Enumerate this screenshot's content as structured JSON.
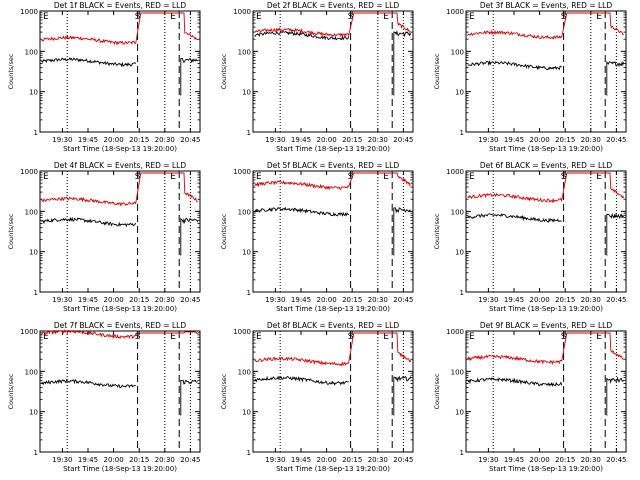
{
  "chart_data": [
    {
      "type": "line",
      "title": "Det 1f BLACK = Events, RED = LLD",
      "xlabel": "Start Time (18-Sep-13 19:20:00)",
      "ylabel": "Counts/sec",
      "yscale": "log",
      "ylim": [
        1,
        1000
      ],
      "yticks": [
        "1",
        "10",
        "100",
        "1000"
      ],
      "xticks": [
        "19:30",
        "19:45",
        "20:00",
        "20:15",
        "20:30",
        "20:45"
      ],
      "markers": [
        "E",
        "S",
        "E"
      ],
      "series": [
        {
          "color": "#000000",
          "level": 55
        },
        {
          "color": "#e00000",
          "level": 190
        }
      ]
    },
    {
      "type": "line",
      "title": "Det 2f BLACK = Events, RED = LLD",
      "xlabel": "Start Time (18-Sep-13 19:20:00)",
      "ylabel": "Counts/sec",
      "yscale": "log",
      "ylim": [
        1,
        1000
      ],
      "yticks": [
        "1",
        "10",
        "100",
        "1000"
      ],
      "xticks": [
        "19:30",
        "19:45",
        "20:00",
        "20:15",
        "20:30",
        "20:45"
      ],
      "markers": [
        "E",
        "S",
        "E"
      ],
      "series": [
        {
          "color": "#000000",
          "level": 250
        },
        {
          "color": "#e00000",
          "level": 300
        }
      ]
    },
    {
      "type": "line",
      "title": "Det 3f BLACK = Events, RED = LLD",
      "xlabel": "Start Time (18-Sep-13 19:20:00)",
      "ylabel": "Counts/sec",
      "yscale": "log",
      "ylim": [
        1,
        1000
      ],
      "yticks": [
        "1",
        "10",
        "100",
        "1000"
      ],
      "xticks": [
        "19:30",
        "19:45",
        "20:00",
        "20:15",
        "20:30",
        "20:45"
      ],
      "markers": [
        "E",
        "S",
        "E"
      ],
      "series": [
        {
          "color": "#000000",
          "level": 45
        },
        {
          "color": "#e00000",
          "level": 260
        }
      ]
    },
    {
      "type": "line",
      "title": "Det 4f BLACK = Events, RED = LLD",
      "xlabel": "Start Time (18-Sep-13 19:20:00)",
      "ylabel": "Counts/sec",
      "yscale": "log",
      "ylim": [
        1,
        1000
      ],
      "yticks": [
        "1",
        "10",
        "100",
        "1000"
      ],
      "xticks": [
        "19:30",
        "19:45",
        "20:00",
        "20:15",
        "20:30",
        "20:45"
      ],
      "markers": [
        "E",
        "S",
        "E"
      ],
      "series": [
        {
          "color": "#000000",
          "level": 55
        },
        {
          "color": "#e00000",
          "level": 180
        }
      ]
    },
    {
      "type": "line",
      "title": "Det 5f BLACK = Events, RED = LLD",
      "xlabel": "Start Time (18-Sep-13 19:20:00)",
      "ylabel": "Counts/sec",
      "yscale": "log",
      "ylim": [
        1,
        1000
      ],
      "yticks": [
        "1",
        "10",
        "100",
        "1000"
      ],
      "xticks": [
        "19:30",
        "19:45",
        "20:00",
        "20:15",
        "20:30",
        "20:45"
      ],
      "markers": [
        "E",
        "S",
        "E"
      ],
      "series": [
        {
          "color": "#000000",
          "level": 100
        },
        {
          "color": "#e00000",
          "level": 450
        }
      ]
    },
    {
      "type": "line",
      "title": "Det 6f BLACK = Events, RED = LLD",
      "xlabel": "Start Time (18-Sep-13 19:20:00)",
      "ylabel": "Counts/sec",
      "yscale": "log",
      "ylim": [
        1,
        1000
      ],
      "yticks": [
        "1",
        "10",
        "100",
        "1000"
      ],
      "xticks": [
        "19:30",
        "19:45",
        "20:00",
        "20:15",
        "20:30",
        "20:45"
      ],
      "markers": [
        "E",
        "S",
        "E"
      ],
      "series": [
        {
          "color": "#000000",
          "level": 70
        },
        {
          "color": "#e00000",
          "level": 220
        }
      ]
    },
    {
      "type": "line",
      "title": "Det 7f BLACK = Events, RED = LLD",
      "xlabel": "Start Time (18-Sep-13 19:20:00)",
      "ylabel": "Counts/sec",
      "yscale": "log",
      "ylim": [
        1,
        1000
      ],
      "yticks": [
        "1",
        "10",
        "100",
        "1000"
      ],
      "xticks": [
        "19:30",
        "19:45",
        "20:00",
        "20:15",
        "20:30",
        "20:45"
      ],
      "markers": [
        "E",
        "S",
        "E"
      ],
      "series": [
        {
          "color": "#000000",
          "level": 50
        },
        {
          "color": "#e00000",
          "level": 850
        }
      ]
    },
    {
      "type": "line",
      "title": "Det 8f BLACK = Events, RED = LLD",
      "xlabel": "Start Time (18-Sep-13 19:20:00)",
      "ylabel": "Counts/sec",
      "yscale": "log",
      "ylim": [
        1,
        1000
      ],
      "yticks": [
        "1",
        "10",
        "100",
        "1000"
      ],
      "xticks": [
        "19:30",
        "19:45",
        "20:00",
        "20:15",
        "20:30",
        "20:45"
      ],
      "markers": [
        "E",
        "S",
        "E"
      ],
      "series": [
        {
          "color": "#000000",
          "level": 60
        },
        {
          "color": "#e00000",
          "level": 180
        }
      ]
    },
    {
      "type": "line",
      "title": "Det 9f BLACK = Events, RED = LLD",
      "xlabel": "Start Time (18-Sep-13 19:20:00)",
      "ylabel": "Counts/sec",
      "yscale": "log",
      "ylim": [
        1,
        1000
      ],
      "yticks": [
        "1",
        "10",
        "100",
        "1000"
      ],
      "xticks": [
        "19:30",
        "19:45",
        "20:00",
        "20:15",
        "20:30",
        "20:45"
      ],
      "markers": [
        "E",
        "S",
        "E"
      ],
      "series": [
        {
          "color": "#000000",
          "level": 55
        },
        {
          "color": "#e00000",
          "level": 200
        }
      ]
    }
  ]
}
